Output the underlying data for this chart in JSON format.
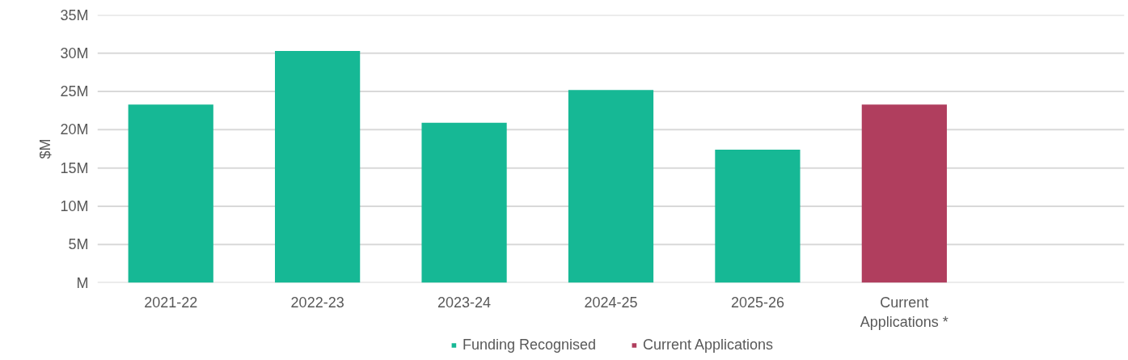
{
  "chart_data": {
    "type": "bar",
    "ylabel": "$M",
    "categories": [
      "2021-22",
      "2022-23",
      "2023-24",
      "2024-25",
      "2025-26",
      "Current Applications *",
      null
    ],
    "series": [
      {
        "name": "Funding Recognised",
        "color": "#16b895",
        "values": [
          23.3,
          30.3,
          20.9,
          25.2,
          17.4,
          null,
          null
        ]
      },
      {
        "name": "Current Applications",
        "color": "#b03e5e",
        "values": [
          null,
          null,
          null,
          null,
          null,
          23.3,
          null
        ]
      }
    ],
    "ylim": [
      0,
      35
    ],
    "yticks": [
      {
        "value": 0,
        "label": "M"
      },
      {
        "value": 5,
        "label": "5M"
      },
      {
        "value": 10,
        "label": "10M"
      },
      {
        "value": 15,
        "label": "15M"
      },
      {
        "value": 20,
        "label": "20M"
      },
      {
        "value": 25,
        "label": "25M"
      },
      {
        "value": 30,
        "label": "30M"
      },
      {
        "value": 35,
        "label": "35M"
      }
    ],
    "grid": "y",
    "legend": "bottom"
  }
}
